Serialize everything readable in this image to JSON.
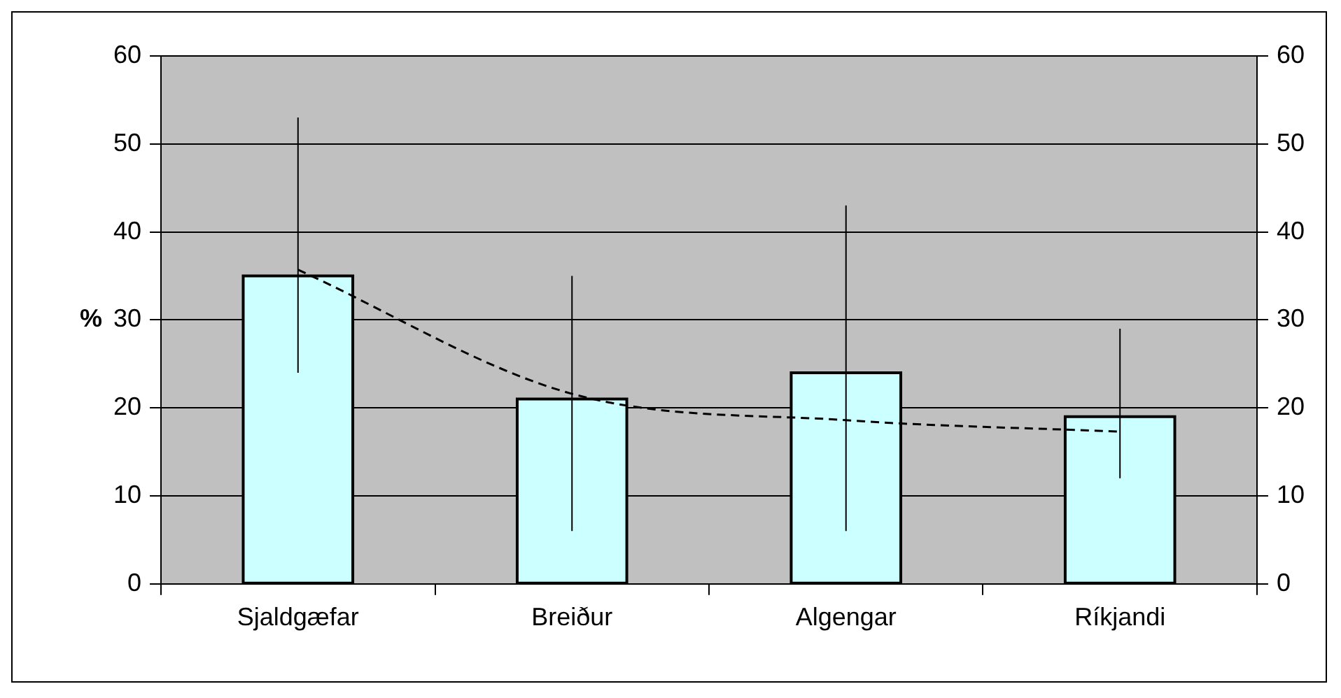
{
  "chart_data": {
    "type": "bar",
    "ylabel": "%",
    "categories": [
      "Sjaldgæfar",
      "Breiður",
      "Algengar",
      "Ríkjandi"
    ],
    "series": [
      {
        "color": "#ccffff",
        "values": [
          35,
          21,
          24,
          19
        ],
        "errors": [
          [
            24,
            53
          ],
          [
            6,
            35
          ],
          [
            6,
            43
          ],
          [
            12,
            29
          ]
        ]
      },
      {
        "type": "line",
        "color": "#000000",
        "line_style": "dashed",
        "marker": "none",
        "values": [
          35.7,
          21.6,
          18.6,
          17.3
        ]
      }
    ],
    "ylim": [
      0,
      60
    ],
    "yticks": [
      0,
      10,
      20,
      30,
      40,
      50,
      60
    ],
    "y2lim": [
      0,
      60
    ],
    "y2ticks": [
      0,
      10,
      20,
      30,
      40,
      50,
      60
    ],
    "grid": "y",
    "legend": false
  }
}
